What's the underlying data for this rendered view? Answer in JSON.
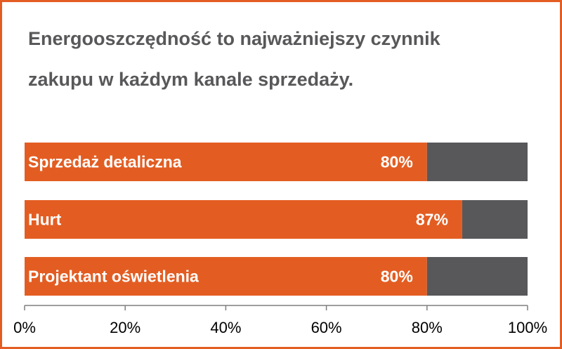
{
  "title_lines": [
    "Energooszczędność to najważniejszy czynnik",
    "zakupu w każdym kanale sprzedaży."
  ],
  "colors": {
    "accent": "#e35d22",
    "remainder": "#58585a",
    "title": "#58585a"
  },
  "chart_data": {
    "type": "bar",
    "orientation": "horizontal",
    "stacked_to_100": true,
    "title": "Energooszczędność to najważniejszy czynnik zakupu w każdym kanale sprzedaży.",
    "categories": [
      "Sprzedaż detaliczna",
      "Hurt",
      "Projektant oświetlenia"
    ],
    "values": [
      80,
      87,
      80
    ],
    "value_labels": [
      "80%",
      "87%",
      "80%"
    ],
    "xlim": [
      0,
      100
    ],
    "xticks": [
      "0%",
      "20%",
      "40%",
      "60%",
      "80%",
      "100%"
    ],
    "grid": false
  }
}
